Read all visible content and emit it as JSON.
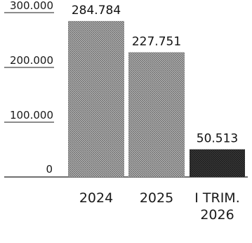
{
  "chart_data": {
    "type": "bar",
    "categories": [
      [
        "2024"
      ],
      [
        "2025"
      ],
      [
        "I TRIM.",
        "2026"
      ]
    ],
    "values": [
      284784,
      227751,
      50513
    ],
    "value_labels": [
      "284.784",
      "227.751",
      "50.513"
    ],
    "yticks": [
      0,
      100000,
      200000,
      300000
    ],
    "ytick_labels": [
      "0",
      "100.000",
      "200.000",
      "300.000"
    ],
    "ylim": [
      0,
      300000
    ],
    "bar_colors": [
      "#8c8c8c",
      "#8c8c8c",
      "#3a3a3a"
    ],
    "grid": false,
    "legend": "none"
  }
}
